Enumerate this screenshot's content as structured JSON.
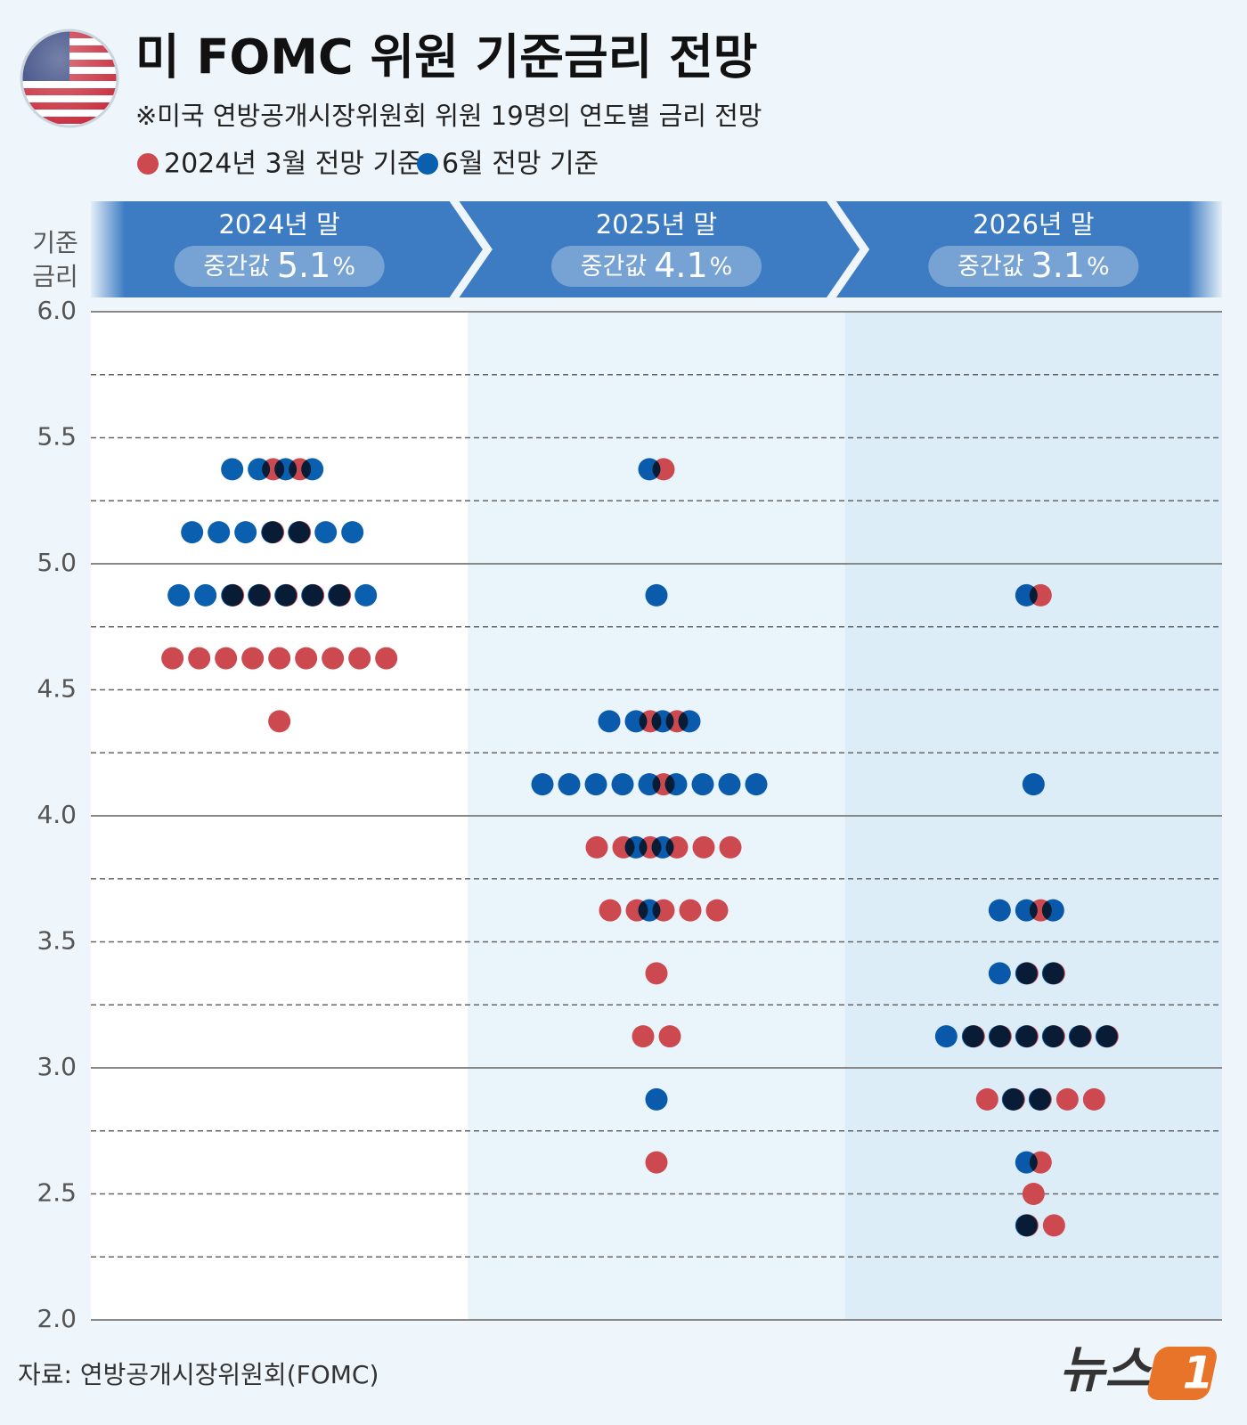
{
  "chart_data": {
    "type": "dot",
    "title": "미 FOMC 위원 기준금리 전망",
    "subtitle": "※미국 연방공개시장위원회 위원 19명의 연도별 금리 전망",
    "ylabel": [
      "기준",
      "금리"
    ],
    "categories": [
      "2024년 말",
      "2025년 말",
      "2026년 말"
    ],
    "median_label": "중간값",
    "medians": [
      5.1,
      4.1,
      3.1
    ],
    "median_unit": "%",
    "series": [
      {
        "name": "2024년 3월 전망 기준",
        "color": "#cc4a4f",
        "values": [
          [
            5.375,
            5.375,
            5.125,
            5.125,
            4.875,
            4.875,
            4.875,
            4.875,
            4.875,
            4.625,
            4.625,
            4.625,
            4.625,
            4.625,
            4.625,
            4.625,
            4.625,
            4.625,
            4.375
          ],
          [
            5.375,
            4.375,
            4.375,
            4.125,
            3.875,
            3.875,
            3.875,
            3.875,
            3.875,
            3.875,
            3.625,
            3.625,
            3.625,
            3.625,
            3.625,
            3.375,
            3.125,
            3.125,
            2.625
          ],
          [
            4.875,
            3.625,
            3.375,
            3.375,
            3.125,
            3.125,
            3.125,
            3.125,
            3.125,
            3.125,
            2.875,
            2.875,
            2.875,
            2.875,
            2.875,
            2.625,
            2.5,
            2.375,
            2.375
          ]
        ]
      },
      {
        "name": "6월 전망 기준",
        "color": "#0a5fae",
        "values": [
          [
            5.375,
            5.375,
            5.375,
            5.375,
            5.125,
            5.125,
            5.125,
            5.125,
            5.125,
            5.125,
            5.125,
            4.875,
            4.875,
            4.875,
            4.875,
            4.875,
            4.875,
            4.875,
            4.875
          ],
          [
            5.375,
            4.875,
            4.375,
            4.375,
            4.375,
            4.375,
            4.125,
            4.125,
            4.125,
            4.125,
            4.125,
            4.125,
            4.125,
            4.125,
            4.125,
            3.875,
            3.875,
            3.625,
            2.875
          ],
          [
            4.875,
            4.125,
            3.625,
            3.625,
            3.625,
            3.375,
            3.375,
            3.375,
            3.125,
            3.125,
            3.125,
            3.125,
            3.125,
            3.125,
            3.125,
            2.875,
            2.875,
            2.625,
            2.375
          ]
        ]
      }
    ],
    "ylim": [
      2,
      6
    ],
    "yticks": [
      {
        "value": 2,
        "label": "2.0"
      },
      2.5,
      {
        "value": 3,
        "label": "3.0"
      },
      3.5,
      {
        "value": 4,
        "label": "4.0"
      },
      4.5,
      {
        "value": 5,
        "label": "5.0"
      },
      5.5,
      {
        "value": 6,
        "label": "6.0"
      }
    ],
    "minor_yticks": [
      2.25,
      2.75,
      3.25,
      3.75,
      4.25,
      4.75,
      5.25,
      5.75
    ],
    "grid": true,
    "source": "자료: 연방공개시장위원회(FOMC)",
    "logo": {
      "text": "뉴스",
      "mark": "1"
    }
  }
}
